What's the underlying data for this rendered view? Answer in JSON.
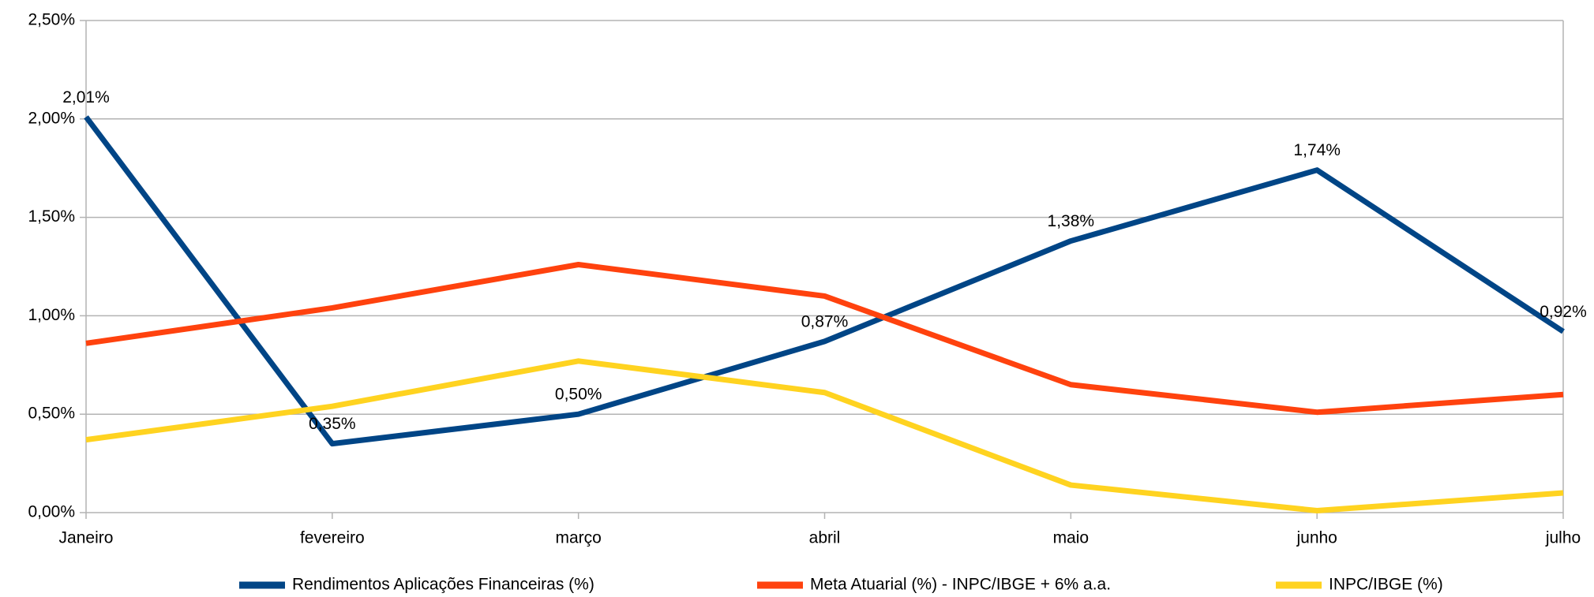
{
  "chart_data": {
    "type": "line",
    "categories": [
      "Janeiro",
      "fevereiro",
      "março",
      "abril",
      "maio",
      "junho",
      "julho"
    ],
    "series": [
      {
        "name": "Rendimentos Aplicações Financeiras (%)",
        "color": "#004586",
        "values": [
          2.01,
          0.35,
          0.5,
          0.87,
          1.38,
          1.74,
          0.92
        ],
        "value_labels": [
          "2,01%",
          "0,35%",
          "0,50%",
          "0,87%",
          "1,38%",
          "1,74%",
          "0,92%"
        ]
      },
      {
        "name": "Meta Atuarial (%) - INPC/IBGE + 6% a.a.",
        "color": "#ff420e",
        "values": [
          0.86,
          1.04,
          1.26,
          1.1,
          0.65,
          0.51,
          0.6
        ]
      },
      {
        "name": "INPC/IBGE (%)",
        "color": "#ffd320",
        "values": [
          0.37,
          0.54,
          0.77,
          0.61,
          0.14,
          0.01,
          0.1
        ]
      }
    ],
    "ylim": [
      0,
      2.5
    ],
    "yticks": [
      {
        "value": 0,
        "label": "0,00%"
      },
      {
        "value": 0.5,
        "label": "0,50%"
      },
      {
        "value": 1,
        "label": "1,00%"
      },
      {
        "value": 1.5,
        "label": "1,50%"
      },
      {
        "value": 2,
        "label": "2,00%"
      },
      {
        "value": 2.5,
        "label": "2,50%"
      }
    ],
    "grid": true,
    "legend": "bottom"
  }
}
